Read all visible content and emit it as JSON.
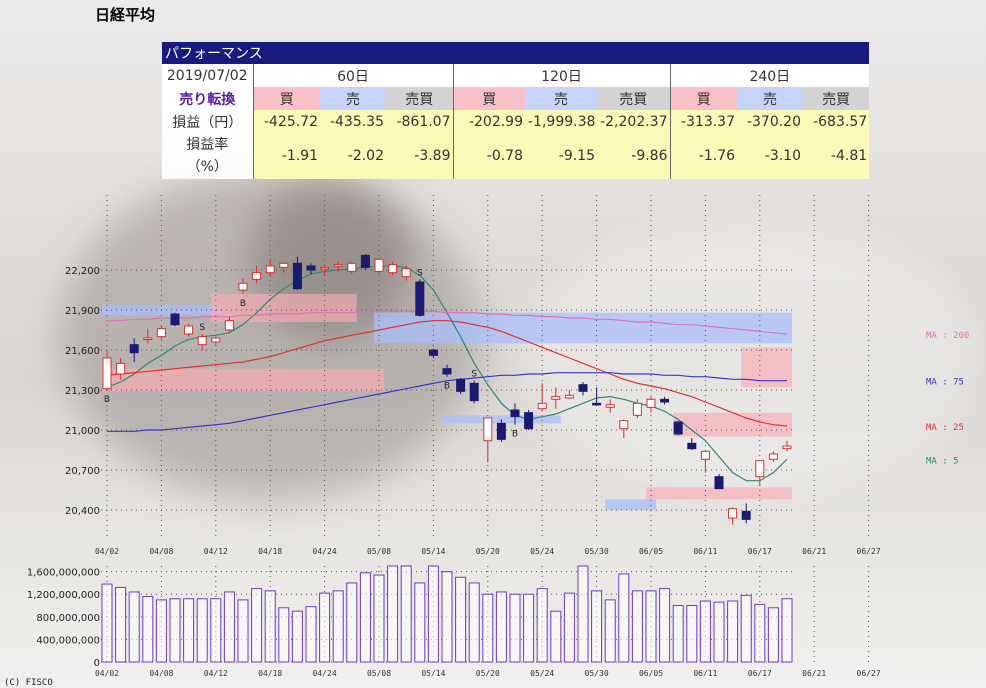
{
  "page_title": "日経平均",
  "copyright": "(C) FISCO",
  "table": {
    "header": "パフォーマンス",
    "date": "2019/07/02",
    "signal_label": "売り転換",
    "periods": [
      "60日",
      "120日",
      "240日"
    ],
    "column_labels": [
      "買",
      "売",
      "売買"
    ],
    "row_labels": {
      "pnl": "損益（円）",
      "rate_line1": "損益率",
      "rate_line2": "（%）"
    },
    "pnl": [
      [
        "-425.72",
        "-435.35",
        "-861.07"
      ],
      [
        "-202.99",
        "-1,999.38",
        "-2,202.37"
      ],
      [
        "-313.37",
        "-370.20",
        "-683.57"
      ]
    ],
    "rate": [
      [
        "-1.91",
        "-2.02",
        "-3.89"
      ],
      [
        "-0.78",
        "-9.15",
        "-9.86"
      ],
      [
        "-1.76",
        "-3.10",
        "-4.81"
      ]
    ]
  },
  "chart_data": {
    "type": "candlestick",
    "ylim": [
      20250,
      22500
    ],
    "yticks": [
      20400,
      20700,
      21000,
      21300,
      21600,
      21900,
      22200
    ],
    "ytick_labels": [
      "20,400",
      "20,700",
      "21,000",
      "21,300",
      "21,600",
      "21,900",
      "22,200"
    ],
    "xtick_labels": [
      "04/02",
      "04/08",
      "04/12",
      "04/18",
      "04/24",
      "05/08",
      "05/14",
      "05/20",
      "05/24",
      "05/30",
      "06/05",
      "06/11",
      "06/17",
      "06/21",
      "06/27"
    ],
    "xtick_index": [
      0,
      4,
      8,
      12,
      16,
      20,
      24,
      28,
      32,
      36,
      40,
      44,
      48,
      52,
      56
    ],
    "candles": [
      {
        "o": 21310,
        "h": 21600,
        "l": 21300,
        "c": 21540
      },
      {
        "o": 21420,
        "h": 21540,
        "l": 21380,
        "c": 21500
      },
      {
        "o": 21640,
        "h": 21690,
        "l": 21510,
        "c": 21580
      },
      {
        "o": 21680,
        "h": 21760,
        "l": 21650,
        "c": 21690
      },
      {
        "o": 21700,
        "h": 21780,
        "l": 21680,
        "c": 21760
      },
      {
        "o": 21870,
        "h": 21880,
        "l": 21780,
        "c": 21790
      },
      {
        "o": 21720,
        "h": 21800,
        "l": 21700,
        "c": 21780
      },
      {
        "o": 21640,
        "h": 21720,
        "l": 21600,
        "c": 21700
      },
      {
        "o": 21660,
        "h": 21700,
        "l": 21640,
        "c": 21690
      },
      {
        "o": 21750,
        "h": 21850,
        "l": 21740,
        "c": 21820
      },
      {
        "o": 22050,
        "h": 22140,
        "l": 22020,
        "c": 22100
      },
      {
        "o": 22130,
        "h": 22230,
        "l": 22100,
        "c": 22180
      },
      {
        "o": 22180,
        "h": 22280,
        "l": 22150,
        "c": 22230
      },
      {
        "o": 22220,
        "h": 22260,
        "l": 22180,
        "c": 22250
      },
      {
        "o": 22250,
        "h": 22300,
        "l": 22050,
        "c": 22060
      },
      {
        "o": 22230,
        "h": 22250,
        "l": 22170,
        "c": 22200
      },
      {
        "o": 22210,
        "h": 22240,
        "l": 22160,
        "c": 22220
      },
      {
        "o": 22230,
        "h": 22260,
        "l": 22180,
        "c": 22240
      },
      {
        "o": 22190,
        "h": 22260,
        "l": 22170,
        "c": 22250
      },
      {
        "o": 22310,
        "h": 22320,
        "l": 22200,
        "c": 22220
      },
      {
        "o": 22190,
        "h": 22290,
        "l": 22170,
        "c": 22280
      },
      {
        "o": 22180,
        "h": 22260,
        "l": 22160,
        "c": 22240
      },
      {
        "o": 22150,
        "h": 22230,
        "l": 22120,
        "c": 22210
      },
      {
        "o": 22110,
        "h": 22130,
        "l": 21850,
        "c": 21860
      },
      {
        "o": 21600,
        "h": 21610,
        "l": 21540,
        "c": 21560
      },
      {
        "o": 21460,
        "h": 21490,
        "l": 21400,
        "c": 21420
      },
      {
        "o": 21380,
        "h": 21390,
        "l": 21270,
        "c": 21290
      },
      {
        "o": 21350,
        "h": 21370,
        "l": 21200,
        "c": 21220
      },
      {
        "o": 20920,
        "h": 21090,
        "l": 20760,
        "c": 21090
      },
      {
        "o": 21050,
        "h": 21080,
        "l": 20910,
        "c": 20930
      },
      {
        "o": 21150,
        "h": 21200,
        "l": 21040,
        "c": 21100
      },
      {
        "o": 21130,
        "h": 21150,
        "l": 21000,
        "c": 21010
      },
      {
        "o": 21160,
        "h": 21350,
        "l": 21140,
        "c": 21200
      },
      {
        "o": 21230,
        "h": 21320,
        "l": 21160,
        "c": 21250
      },
      {
        "o": 21240,
        "h": 21300,
        "l": 21230,
        "c": 21260
      },
      {
        "o": 21340,
        "h": 21360,
        "l": 21260,
        "c": 21290
      },
      {
        "o": 21200,
        "h": 21320,
        "l": 21180,
        "c": 21190
      },
      {
        "o": 21170,
        "h": 21230,
        "l": 21130,
        "c": 21190
      },
      {
        "o": 21010,
        "h": 21080,
        "l": 20940,
        "c": 21070
      },
      {
        "o": 21110,
        "h": 21230,
        "l": 21090,
        "c": 21200
      },
      {
        "o": 21170,
        "h": 21250,
        "l": 21130,
        "c": 21230
      },
      {
        "o": 21230,
        "h": 21250,
        "l": 21190,
        "c": 21210
      },
      {
        "o": 21060,
        "h": 21070,
        "l": 20960,
        "c": 20970
      },
      {
        "o": 20900,
        "h": 20940,
        "l": 20850,
        "c": 20860
      },
      {
        "o": 20780,
        "h": 20840,
        "l": 20680,
        "c": 20840
      },
      {
        "o": 20650,
        "h": 20670,
        "l": 20560,
        "c": 20560
      },
      {
        "o": 20340,
        "h": 20420,
        "l": 20290,
        "c": 20410
      },
      {
        "o": 20390,
        "h": 20450,
        "l": 20300,
        "c": 20330
      },
      {
        "o": 20650,
        "h": 20760,
        "l": 20580,
        "c": 20770
      },
      {
        "o": 20780,
        "h": 20840,
        "l": 20760,
        "c": 20820
      },
      {
        "o": 20860,
        "h": 20920,
        "l": 20840,
        "c": 20880
      }
    ],
    "moving_averages": [
      {
        "name": "MA : 5",
        "color": "#2e8b74",
        "values": [
          21320,
          21360,
          21420,
          21500,
          21560,
          21630,
          21680,
          21700,
          21710,
          21730,
          21790,
          21880,
          21980,
          22060,
          22120,
          22170,
          22190,
          22200,
          22210,
          22220,
          22230,
          22230,
          22220,
          22160,
          22050,
          21880,
          21700,
          21500,
          21340,
          21200,
          21110,
          21080,
          21100,
          21120,
          21160,
          21200,
          21240,
          21250,
          21230,
          21200,
          21180,
          21140,
          21080,
          21000,
          20920,
          20800,
          20680,
          20620,
          20620,
          20680,
          20780
        ]
      },
      {
        "name": "MA : 25",
        "color": "#e23030",
        "values": [
          21410,
          21420,
          21430,
          21440,
          21450,
          21460,
          21470,
          21480,
          21490,
          21500,
          21510,
          21530,
          21550,
          21580,
          21610,
          21640,
          21670,
          21690,
          21710,
          21730,
          21750,
          21770,
          21790,
          21810,
          21820,
          21820,
          21810,
          21790,
          21770,
          21740,
          21700,
          21660,
          21620,
          21580,
          21540,
          21500,
          21460,
          21420,
          21380,
          21350,
          21330,
          21310,
          21280,
          21250,
          21210,
          21170,
          21130,
          21090,
          21060,
          21040,
          21030
        ]
      },
      {
        "name": "MA : 75",
        "color": "#3a36c8",
        "values": [
          20990,
          20990,
          20990,
          21000,
          21000,
          21010,
          21020,
          21030,
          21040,
          21050,
          21070,
          21090,
          21110,
          21130,
          21150,
          21170,
          21190,
          21210,
          21230,
          21250,
          21270,
          21290,
          21310,
          21330,
          21350,
          21370,
          21380,
          21390,
          21400,
          21410,
          21410,
          21420,
          21420,
          21430,
          21430,
          21430,
          21430,
          21430,
          21420,
          21420,
          21420,
          21410,
          21410,
          21400,
          21400,
          21390,
          21380,
          21380,
          21370,
          21370,
          21370
        ]
      },
      {
        "name": "MA : 200",
        "color": "#e070b8",
        "values": [
          21820,
          21820,
          21830,
          21830,
          21840,
          21840,
          21840,
          21850,
          21850,
          21850,
          21860,
          21860,
          21870,
          21870,
          21870,
          21880,
          21880,
          21880,
          21880,
          21890,
          21890,
          21890,
          21890,
          21890,
          21890,
          21880,
          21880,
          21880,
          21870,
          21870,
          21860,
          21860,
          21850,
          21850,
          21840,
          21840,
          21830,
          21830,
          21820,
          21810,
          21810,
          21800,
          21790,
          21790,
          21780,
          21770,
          21760,
          21750,
          21740,
          21730,
          21720
        ]
      }
    ],
    "signals": [
      {
        "i": 0,
        "t": "B",
        "pos": "below"
      },
      {
        "i": 7,
        "t": "S",
        "pos": "above"
      },
      {
        "i": 10,
        "t": "B",
        "pos": "below"
      },
      {
        "i": 23,
        "t": "S",
        "pos": "above"
      },
      {
        "i": 25,
        "t": "B",
        "pos": "below"
      },
      {
        "i": 27,
        "t": "S",
        "pos": "above"
      },
      {
        "i": 30,
        "t": "B",
        "pos": "below"
      }
    ],
    "volume": {
      "ylim": [
        0,
        1700000000
      ],
      "yticks": [
        0,
        400000000,
        800000000,
        1200000000,
        1600000000
      ],
      "ytick_labels": [
        "0",
        "400,000,000",
        "800,000,000",
        "1,200,000,000",
        "1,600,000,000"
      ],
      "values": [
        1380000000,
        1320000000,
        1240000000,
        1160000000,
        1100000000,
        1120000000,
        1120000000,
        1120000000,
        1120000000,
        1240000000,
        1100000000,
        1300000000,
        1260000000,
        960000000,
        900000000,
        980000000,
        1220000000,
        1260000000,
        1400000000,
        1580000000,
        1540000000,
        1720000000,
        1700000000,
        1400000000,
        1720000000,
        1600000000,
        1500000000,
        1400000000,
        1200000000,
        1240000000,
        1200000000,
        1200000000,
        1300000000,
        900000000,
        1220000000,
        1720000000,
        1260000000,
        1100000000,
        1560000000,
        1260000000,
        1260000000,
        1300000000,
        1000000000,
        1000000000,
        1080000000,
        1060000000,
        1080000000,
        1180000000,
        1020000000,
        960000000,
        1120000000
      ]
    }
  }
}
